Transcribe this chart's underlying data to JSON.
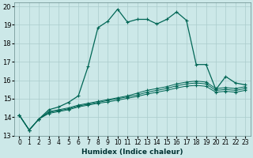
{
  "xlabel": "Humidex (Indice chaleur)",
  "xlim": [
    -0.5,
    23.5
  ],
  "ylim": [
    13,
    20.2
  ],
  "yticks": [
    13,
    14,
    15,
    16,
    17,
    18,
    19,
    20
  ],
  "xticks": [
    0,
    1,
    2,
    3,
    4,
    5,
    6,
    7,
    8,
    9,
    10,
    11,
    12,
    13,
    14,
    15,
    16,
    17,
    18,
    19,
    20,
    21,
    22,
    23
  ],
  "background_color": "#cce8e8",
  "grid_color": "#aacccc",
  "line_color": "#006655",
  "series1": {
    "x": [
      0,
      1,
      2,
      3,
      4,
      5,
      6,
      7,
      8,
      9,
      10,
      11,
      12,
      13,
      14,
      15,
      16,
      17,
      18,
      19,
      20,
      21,
      22,
      23
    ],
    "y": [
      14.1,
      13.3,
      13.9,
      14.4,
      14.55,
      14.8,
      15.15,
      16.75,
      18.85,
      19.2,
      19.85,
      19.15,
      19.3,
      19.3,
      19.05,
      19.3,
      19.7,
      19.25,
      16.85,
      16.85,
      15.5,
      16.2,
      15.85,
      15.75
    ]
  },
  "series2": {
    "x": [
      0,
      1,
      2,
      3,
      4,
      5,
      6,
      7,
      8,
      9,
      10,
      11,
      12,
      13,
      14,
      15,
      16,
      17,
      18,
      19,
      20,
      21,
      22,
      23
    ],
    "y": [
      14.1,
      13.3,
      13.9,
      14.3,
      14.4,
      14.5,
      14.65,
      14.75,
      14.85,
      14.95,
      15.05,
      15.15,
      15.3,
      15.45,
      15.55,
      15.65,
      15.8,
      15.9,
      15.95,
      15.9,
      15.55,
      15.6,
      15.55,
      15.65
    ]
  },
  "series3": {
    "x": [
      0,
      1,
      2,
      3,
      4,
      5,
      6,
      7,
      8,
      9,
      10,
      11,
      12,
      13,
      14,
      15,
      16,
      17,
      18,
      19,
      20,
      21,
      22,
      23
    ],
    "y": [
      14.1,
      13.3,
      13.9,
      14.25,
      14.35,
      14.45,
      14.6,
      14.7,
      14.8,
      14.9,
      15.0,
      15.1,
      15.2,
      15.35,
      15.45,
      15.55,
      15.7,
      15.8,
      15.85,
      15.8,
      15.45,
      15.5,
      15.45,
      15.55
    ]
  },
  "series4": {
    "x": [
      0,
      1,
      2,
      3,
      4,
      5,
      6,
      7,
      8,
      9,
      10,
      11,
      12,
      13,
      14,
      15,
      16,
      17,
      18,
      19,
      20,
      21,
      22,
      23
    ],
    "y": [
      14.1,
      13.3,
      13.9,
      14.2,
      14.3,
      14.4,
      14.55,
      14.65,
      14.75,
      14.82,
      14.92,
      15.02,
      15.12,
      15.25,
      15.35,
      15.45,
      15.58,
      15.68,
      15.72,
      15.67,
      15.35,
      15.4,
      15.35,
      15.45
    ]
  }
}
